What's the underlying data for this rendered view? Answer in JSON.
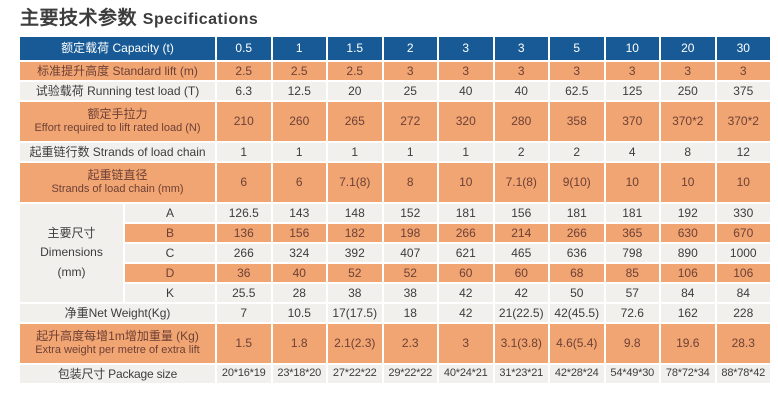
{
  "page": {
    "title_zh": "主要技术参数",
    "title_en": "Specifications"
  },
  "colors": {
    "header_bg": "#175A96",
    "header_text": "#FFFFFF",
    "orange_row_bg": "#F1A572",
    "orange_row_text": "#6E4036",
    "gray_row_bg": "#F1F0ED",
    "gray_row_text": "#3C3C3C",
    "title_text": "#3D3D3D"
  },
  "table": {
    "header": {
      "label": "额定载荷  Capacity (t)",
      "values": [
        "0.5",
        "1",
        "1.5",
        "2",
        "3",
        "3",
        "5",
        "10",
        "20",
        "30"
      ]
    },
    "rows": [
      {
        "kind": "simple",
        "style": "orange",
        "label": [
          "标准提升高度  Standard lift (m)"
        ],
        "values": [
          "2.5",
          "2.5",
          "2.5",
          "3",
          "3",
          "3",
          "3",
          "3",
          "3",
          "3"
        ]
      },
      {
        "kind": "simple",
        "style": "gray",
        "label": [
          "试验载荷  Running test load (T)"
        ],
        "values": [
          "6.3",
          "12.5",
          "20",
          "25",
          "40",
          "40",
          "62.5",
          "125",
          "250",
          "375"
        ]
      },
      {
        "kind": "simple",
        "style": "orange",
        "label": [
          "额定手拉力",
          "Effort required to lift rated load (N)"
        ],
        "values": [
          "210",
          "260",
          "265",
          "272",
          "320",
          "280",
          "358",
          "370",
          "370*2",
          "370*2"
        ]
      },
      {
        "kind": "simple",
        "style": "gray",
        "label": [
          "起重链行数 Strands of load chain"
        ],
        "values": [
          "1",
          "1",
          "1",
          "1",
          "1",
          "2",
          "2",
          "4",
          "8",
          "12"
        ]
      },
      {
        "kind": "simple",
        "style": "orange",
        "label": [
          "起重链直径",
          "Strands of load chain (mm)"
        ],
        "values": [
          "6",
          "6",
          "7.1(8)",
          "8",
          "10",
          "7.1(8)",
          "9(10)",
          "10",
          "10",
          "10"
        ]
      },
      {
        "kind": "dims",
        "label": [
          "主要尺寸",
          "Dimensions",
          "(mm)"
        ],
        "sub_rows": [
          {
            "key": "A",
            "style": "gray",
            "values": [
              "126.5",
              "143",
              "148",
              "152",
              "181",
              "156",
              "181",
              "181",
              "192",
              "330"
            ]
          },
          {
            "key": "B",
            "style": "orange",
            "values": [
              "136",
              "156",
              "182",
              "198",
              "266",
              "214",
              "266",
              "365",
              "630",
              "670"
            ]
          },
          {
            "key": "C",
            "style": "gray",
            "values": [
              "266",
              "324",
              "392",
              "407",
              "621",
              "465",
              "636",
              "798",
              "890",
              "1000"
            ]
          },
          {
            "key": "D",
            "style": "orange",
            "values": [
              "36",
              "40",
              "52",
              "52",
              "60",
              "60",
              "68",
              "85",
              "106",
              "106"
            ]
          },
          {
            "key": "K",
            "style": "gray",
            "values": [
              "25.5",
              "28",
              "38",
              "38",
              "42",
              "42",
              "50",
              "57",
              "84",
              "84"
            ]
          }
        ]
      },
      {
        "kind": "simple",
        "style": "gray",
        "label": [
          "净重Net Weight(Kg)"
        ],
        "values": [
          "7",
          "10.5",
          "17(17.5)",
          "18",
          "42",
          "21(22.5)",
          "42(45.5)",
          "72.6",
          "162",
          "228"
        ]
      },
      {
        "kind": "simple",
        "style": "orange",
        "label": [
          "起升高度每增1m增加重量 (Kg)",
          "Extra weight per metre of extra lift"
        ],
        "values": [
          "1.5",
          "1.8",
          "2.1(2.3)",
          "2.3",
          "3",
          "3.1(3.8)",
          "4.6(5.4)",
          "9.8",
          "19.6",
          "28.3"
        ]
      },
      {
        "kind": "simple",
        "style": "gray",
        "label": [
          "包装尺寸  Package size"
        ],
        "values": [
          "20*16*19",
          "23*18*20",
          "27*22*22",
          "29*22*22",
          "40*24*21",
          "31*23*21",
          "42*28*24",
          "54*49*30",
          "78*72*34",
          "88*78*42"
        ]
      }
    ]
  }
}
